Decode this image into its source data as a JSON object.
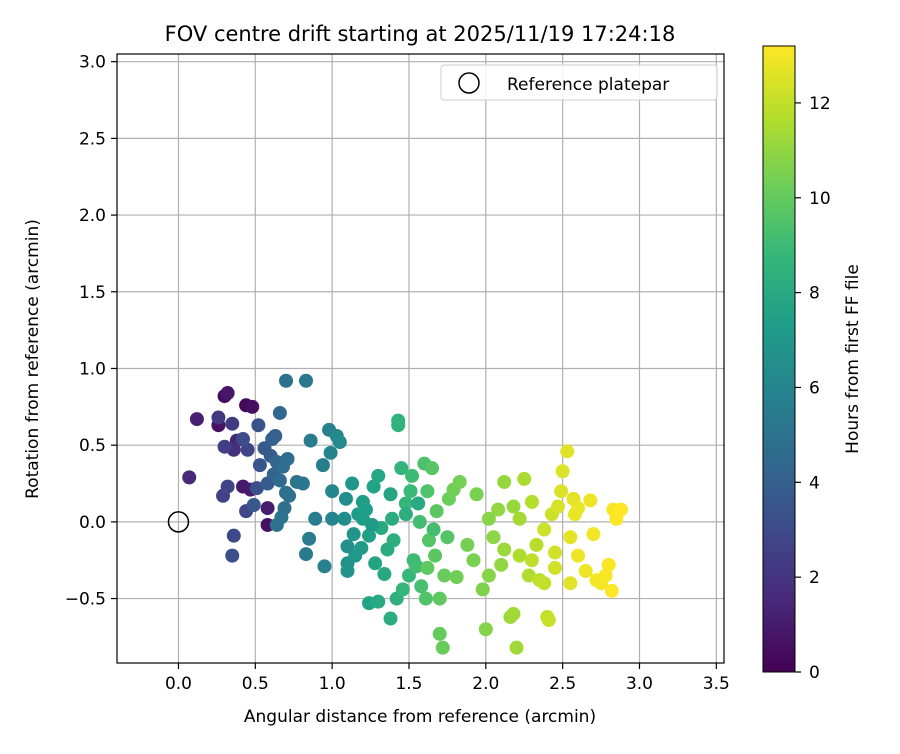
{
  "chart_data": {
    "type": "scatter",
    "title": "FOV centre drift starting at 2025/11/19 17:24:18",
    "xlabel": "Angular distance from reference (arcmin)",
    "ylabel": "Rotation from reference (arcmin)",
    "xlim": [
      -0.4,
      3.55
    ],
    "ylim": [
      -0.92,
      3.05
    ],
    "xticks": [
      0.0,
      0.5,
      1.0,
      1.5,
      2.0,
      2.5,
      3.0,
      3.5
    ],
    "xtick_labels": [
      "0.0",
      "0.5",
      "1.0",
      "1.5",
      "2.0",
      "2.5",
      "3.0",
      "3.5"
    ],
    "yticks": [
      -0.5,
      0.0,
      0.5,
      1.0,
      1.5,
      2.0,
      2.5,
      3.0
    ],
    "ytick_labels": [
      "−0.5",
      "0.0",
      "0.5",
      "1.0",
      "1.5",
      "2.0",
      "2.5",
      "3.0"
    ],
    "grid": true,
    "legend": {
      "position": "top-right",
      "entries": [
        "Reference platepar"
      ]
    },
    "colorbar": {
      "label": "Hours from first FF file",
      "range": [
        0,
        13.2
      ],
      "ticks": [
        0,
        2,
        4,
        6,
        8,
        10,
        12
      ],
      "tick_labels": [
        "0",
        "2",
        "4",
        "6",
        "8",
        "10",
        "12"
      ],
      "colormap": "viridis",
      "stops": [
        "#440154",
        "#482878",
        "#3e4989",
        "#31688e",
        "#26828e",
        "#1f9e89",
        "#35b779",
        "#6ece58",
        "#b5de2b",
        "#fde725"
      ]
    },
    "reference": {
      "x": 0.0,
      "y": 0.0,
      "label": "Reference platepar"
    },
    "points": [
      {
        "x": 0.07,
        "y": 0.29,
        "h": 1.5
      },
      {
        "x": 0.12,
        "y": 0.67,
        "h": 1.2
      },
      {
        "x": 0.26,
        "y": 0.63,
        "h": 0.6
      },
      {
        "x": 0.3,
        "y": 0.82,
        "h": 0.4
      },
      {
        "x": 0.32,
        "y": 0.84,
        "h": 0.8
      },
      {
        "x": 0.44,
        "y": 0.76,
        "h": 0.3
      },
      {
        "x": 0.48,
        "y": 0.75,
        "h": 0.5
      },
      {
        "x": 0.42,
        "y": 0.23,
        "h": 0.9
      },
      {
        "x": 0.47,
        "y": 0.21,
        "h": 1.0
      },
      {
        "x": 0.58,
        "y": -0.02,
        "h": 0.6
      },
      {
        "x": 0.58,
        "y": 0.09,
        "h": 1.1
      },
      {
        "x": 0.38,
        "y": 0.53,
        "h": 1.4
      },
      {
        "x": 0.36,
        "y": 0.47,
        "h": 1.8
      },
      {
        "x": 0.26,
        "y": 0.68,
        "h": 2.2
      },
      {
        "x": 0.35,
        "y": 0.64,
        "h": 2.4
      },
      {
        "x": 0.3,
        "y": 0.49,
        "h": 2.5
      },
      {
        "x": 0.29,
        "y": 0.17,
        "h": 2.6
      },
      {
        "x": 0.32,
        "y": 0.23,
        "h": 2.7
      },
      {
        "x": 0.36,
        "y": -0.09,
        "h": 3.0
      },
      {
        "x": 0.35,
        "y": -0.22,
        "h": 3.2
      },
      {
        "x": 0.44,
        "y": 0.07,
        "h": 2.9
      },
      {
        "x": 0.45,
        "y": 0.47,
        "h": 2.8
      },
      {
        "x": 0.42,
        "y": 0.54,
        "h": 3.1
      },
      {
        "x": 0.52,
        "y": 0.63,
        "h": 3.4
      },
      {
        "x": 0.51,
        "y": 0.22,
        "h": 3.3
      },
      {
        "x": 0.49,
        "y": 0.11,
        "h": 3.6
      },
      {
        "x": 0.53,
        "y": 0.37,
        "h": 3.5
      },
      {
        "x": 0.56,
        "y": 0.48,
        "h": 3.7
      },
      {
        "x": 0.58,
        "y": 0.25,
        "h": 3.8
      },
      {
        "x": 0.6,
        "y": 0.43,
        "h": 3.9
      },
      {
        "x": 0.61,
        "y": 0.54,
        "h": 4.0
      },
      {
        "x": 0.63,
        "y": 0.56,
        "h": 4.1
      },
      {
        "x": 0.62,
        "y": 0.31,
        "h": 4.2
      },
      {
        "x": 0.64,
        "y": 0.39,
        "h": 4.3
      },
      {
        "x": 0.66,
        "y": 0.71,
        "h": 4.4
      },
      {
        "x": 0.66,
        "y": 0.27,
        "h": 4.5
      },
      {
        "x": 0.68,
        "y": 0.36,
        "h": 4.6
      },
      {
        "x": 0.7,
        "y": 0.19,
        "h": 4.6
      },
      {
        "x": 0.71,
        "y": 0.41,
        "h": 4.7
      },
      {
        "x": 0.69,
        "y": 0.09,
        "h": 4.8
      },
      {
        "x": 0.72,
        "y": 0.17,
        "h": 4.9
      },
      {
        "x": 0.7,
        "y": 0.92,
        "h": 4.9
      },
      {
        "x": 0.64,
        "y": -0.02,
        "h": 5.0
      },
      {
        "x": 0.67,
        "y": 0.03,
        "h": 5.1
      },
      {
        "x": 0.77,
        "y": 0.26,
        "h": 5.0
      },
      {
        "x": 0.81,
        "y": 0.25,
        "h": 5.2
      },
      {
        "x": 0.83,
        "y": 0.92,
        "h": 5.3
      },
      {
        "x": 0.83,
        "y": -0.21,
        "h": 5.4
      },
      {
        "x": 0.85,
        "y": -0.11,
        "h": 5.5
      },
      {
        "x": 0.86,
        "y": 0.53,
        "h": 5.5
      },
      {
        "x": 0.89,
        "y": 0.02,
        "h": 5.6
      },
      {
        "x": 0.94,
        "y": 0.37,
        "h": 5.7
      },
      {
        "x": 0.95,
        "y": -0.29,
        "h": 5.8
      },
      {
        "x": 0.98,
        "y": 0.6,
        "h": 5.8
      },
      {
        "x": 0.99,
        "y": 0.45,
        "h": 5.9
      },
      {
        "x": 1.0,
        "y": 0.02,
        "h": 6.0
      },
      {
        "x": 1.0,
        "y": 0.2,
        "h": 6.1
      },
      {
        "x": 1.03,
        "y": 0.56,
        "h": 6.2
      },
      {
        "x": 1.05,
        "y": 0.52,
        "h": 6.3
      },
      {
        "x": 1.08,
        "y": 0.02,
        "h": 6.4
      },
      {
        "x": 1.09,
        "y": 0.15,
        "h": 6.5
      },
      {
        "x": 1.1,
        "y": -0.16,
        "h": 6.6
      },
      {
        "x": 1.1,
        "y": -0.27,
        "h": 6.7
      },
      {
        "x": 1.1,
        "y": -0.32,
        "h": 6.8
      },
      {
        "x": 1.13,
        "y": 0.25,
        "h": 6.9
      },
      {
        "x": 1.15,
        "y": -0.22,
        "h": 7.0
      },
      {
        "x": 1.17,
        "y": 0.05,
        "h": 7.1
      },
      {
        "x": 1.19,
        "y": -0.17,
        "h": 7.2
      },
      {
        "x": 1.2,
        "y": 0.13,
        "h": 7.3
      },
      {
        "x": 1.2,
        "y": 0.02,
        "h": 7.3
      },
      {
        "x": 1.22,
        "y": 0.08,
        "h": 7.4
      },
      {
        "x": 1.24,
        "y": -0.09,
        "h": 7.5
      },
      {
        "x": 1.24,
        "y": -0.53,
        "h": 7.6
      },
      {
        "x": 1.27,
        "y": 0.23,
        "h": 7.6
      },
      {
        "x": 1.28,
        "y": -0.27,
        "h": 7.7
      },
      {
        "x": 1.3,
        "y": 0.3,
        "h": 7.8
      },
      {
        "x": 1.3,
        "y": -0.52,
        "h": 7.9
      },
      {
        "x": 1.32,
        "y": -0.04,
        "h": 8.0
      },
      {
        "x": 1.34,
        "y": -0.34,
        "h": 8.0
      },
      {
        "x": 1.36,
        "y": -0.18,
        "h": 8.1
      },
      {
        "x": 1.38,
        "y": -0.63,
        "h": 8.2
      },
      {
        "x": 1.39,
        "y": 0.02,
        "h": 8.2
      },
      {
        "x": 1.4,
        "y": -0.12,
        "h": 8.3
      },
      {
        "x": 1.42,
        "y": -0.5,
        "h": 8.4
      },
      {
        "x": 1.43,
        "y": 0.66,
        "h": 8.5
      },
      {
        "x": 1.43,
        "y": 0.63,
        "h": 8.5
      },
      {
        "x": 1.45,
        "y": 0.35,
        "h": 8.6
      },
      {
        "x": 1.46,
        "y": -0.44,
        "h": 8.7
      },
      {
        "x": 1.48,
        "y": 0.12,
        "h": 8.7
      },
      {
        "x": 1.5,
        "y": -0.35,
        "h": 8.8
      },
      {
        "x": 1.51,
        "y": 0.2,
        "h": 8.9
      },
      {
        "x": 1.52,
        "y": 0.3,
        "h": 9.0
      },
      {
        "x": 1.53,
        "y": -0.25,
        "h": 9.0
      },
      {
        "x": 1.55,
        "y": -0.29,
        "h": 9.1
      },
      {
        "x": 1.57,
        "y": 0.0,
        "h": 9.2
      },
      {
        "x": 1.58,
        "y": -0.42,
        "h": 9.3
      },
      {
        "x": 1.6,
        "y": 0.38,
        "h": 9.4
      },
      {
        "x": 1.61,
        "y": -0.5,
        "h": 9.5
      },
      {
        "x": 1.62,
        "y": 0.2,
        "h": 9.5
      },
      {
        "x": 1.63,
        "y": -0.12,
        "h": 9.6
      },
      {
        "x": 1.65,
        "y": 0.35,
        "h": 9.7
      },
      {
        "x": 1.67,
        "y": -0.22,
        "h": 9.8
      },
      {
        "x": 1.68,
        "y": 0.07,
        "h": 9.8
      },
      {
        "x": 1.7,
        "y": -0.5,
        "h": 9.9
      },
      {
        "x": 1.7,
        "y": -0.73,
        "h": 10.0
      },
      {
        "x": 1.72,
        "y": -0.82,
        "h": 10.1
      },
      {
        "x": 1.73,
        "y": -0.35,
        "h": 10.1
      },
      {
        "x": 1.76,
        "y": 0.15,
        "h": 10.2
      },
      {
        "x": 1.79,
        "y": 0.21,
        "h": 10.3
      },
      {
        "x": 1.81,
        "y": -0.36,
        "h": 10.3
      },
      {
        "x": 1.83,
        "y": 0.26,
        "h": 10.4
      },
      {
        "x": 1.94,
        "y": 0.18,
        "h": 10.5
      },
      {
        "x": 1.98,
        "y": -0.44,
        "h": 10.6
      },
      {
        "x": 2.0,
        "y": -0.7,
        "h": 10.7
      },
      {
        "x": 2.02,
        "y": -0.35,
        "h": 10.8
      },
      {
        "x": 2.05,
        "y": -0.1,
        "h": 10.9
      },
      {
        "x": 2.08,
        "y": 0.08,
        "h": 11.0
      },
      {
        "x": 2.1,
        "y": -0.28,
        "h": 11.0
      },
      {
        "x": 2.12,
        "y": 0.26,
        "h": 11.1
      },
      {
        "x": 2.16,
        "y": -0.62,
        "h": 11.2
      },
      {
        "x": 2.18,
        "y": -0.6,
        "h": 11.3
      },
      {
        "x": 2.2,
        "y": -0.82,
        "h": 11.3
      },
      {
        "x": 2.22,
        "y": 0.02,
        "h": 11.4
      },
      {
        "x": 2.25,
        "y": 0.28,
        "h": 11.5
      },
      {
        "x": 2.28,
        "y": -0.35,
        "h": 11.6
      },
      {
        "x": 2.3,
        "y": 0.13,
        "h": 11.7
      },
      {
        "x": 2.33,
        "y": -0.15,
        "h": 11.8
      },
      {
        "x": 2.35,
        "y": -0.38,
        "h": 11.9
      },
      {
        "x": 2.38,
        "y": -0.4,
        "h": 12.0
      },
      {
        "x": 2.4,
        "y": -0.62,
        "h": 12.0
      },
      {
        "x": 2.41,
        "y": -0.64,
        "h": 12.1
      },
      {
        "x": 2.43,
        "y": 0.05,
        "h": 12.2
      },
      {
        "x": 2.45,
        "y": -0.2,
        "h": 12.3
      },
      {
        "x": 2.47,
        "y": 0.1,
        "h": 12.4
      },
      {
        "x": 2.49,
        "y": 0.2,
        "h": 12.5
      },
      {
        "x": 2.5,
        "y": 0.33,
        "h": 12.5
      },
      {
        "x": 2.53,
        "y": 0.46,
        "h": 12.6
      },
      {
        "x": 2.55,
        "y": -0.4,
        "h": 12.6
      },
      {
        "x": 2.57,
        "y": 0.15,
        "h": 12.7
      },
      {
        "x": 2.58,
        "y": 0.05,
        "h": 12.8
      },
      {
        "x": 2.6,
        "y": 0.09,
        "h": 12.8
      },
      {
        "x": 2.65,
        "y": -0.32,
        "h": 12.9
      },
      {
        "x": 2.68,
        "y": 0.14,
        "h": 12.9
      },
      {
        "x": 2.7,
        "y": -0.08,
        "h": 13.0
      },
      {
        "x": 2.72,
        "y": -0.38,
        "h": 13.0
      },
      {
        "x": 2.75,
        "y": -0.4,
        "h": 13.0
      },
      {
        "x": 2.78,
        "y": -0.35,
        "h": 13.1
      },
      {
        "x": 2.8,
        "y": -0.28,
        "h": 13.1
      },
      {
        "x": 2.83,
        "y": 0.08,
        "h": 13.1
      },
      {
        "x": 2.85,
        "y": 0.02,
        "h": 13.2
      },
      {
        "x": 2.88,
        "y": 0.08,
        "h": 13.2
      },
      {
        "x": 2.82,
        "y": -0.45,
        "h": 13.2
      },
      {
        "x": 1.56,
        "y": 0.12,
        "h": 7.9
      },
      {
        "x": 1.48,
        "y": 0.05,
        "h": 8.3
      },
      {
        "x": 1.66,
        "y": -0.05,
        "h": 9.2
      },
      {
        "x": 1.75,
        "y": -0.1,
        "h": 9.6
      },
      {
        "x": 1.62,
        "y": -0.3,
        "h": 9.9
      },
      {
        "x": 2.12,
        "y": -0.18,
        "h": 11.2
      },
      {
        "x": 2.22,
        "y": -0.22,
        "h": 11.6
      },
      {
        "x": 2.3,
        "y": -0.25,
        "h": 11.9
      },
      {
        "x": 2.38,
        "y": -0.05,
        "h": 12.2
      },
      {
        "x": 2.55,
        "y": -0.1,
        "h": 12.7
      },
      {
        "x": 2.6,
        "y": -0.22,
        "h": 12.9
      },
      {
        "x": 2.02,
        "y": 0.02,
        "h": 10.8
      },
      {
        "x": 2.18,
        "y": 0.1,
        "h": 11.1
      },
      {
        "x": 2.45,
        "y": -0.3,
        "h": 12.3
      },
      {
        "x": 1.88,
        "y": -0.15,
        "h": 10.4
      },
      {
        "x": 1.92,
        "y": -0.25,
        "h": 10.5
      },
      {
        "x": 1.38,
        "y": 0.18,
        "h": 7.7
      },
      {
        "x": 1.26,
        "y": -0.02,
        "h": 7.2
      },
      {
        "x": 1.14,
        "y": -0.08,
        "h": 6.8
      }
    ]
  }
}
